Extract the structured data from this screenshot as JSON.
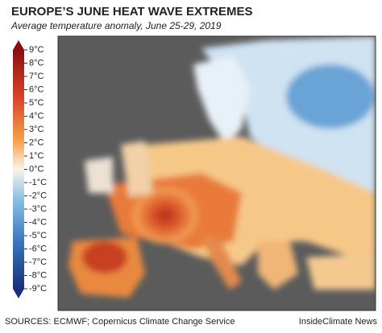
{
  "header": {
    "title": "EUROPE’S JUNE HEAT WAVE EXTREMES",
    "subtitle": "Average temperature anomaly, June 25-29, 2019"
  },
  "legend": {
    "labels": [
      "9°C",
      "8°C",
      "7°C",
      "6°C",
      "5°C",
      "4°C",
      "3°C",
      "2°C",
      "1°C",
      "0°C",
      "-1°C",
      "-2°C",
      "-3°C",
      "-4°C",
      "-5°C",
      "-6°C",
      "-7°C",
      "-8°C",
      "-9°C"
    ]
  },
  "footer": {
    "sources": "SOURCES: ECMWF; Copernicus Climate Change Service",
    "credit": "InsideClimate News"
  }
}
